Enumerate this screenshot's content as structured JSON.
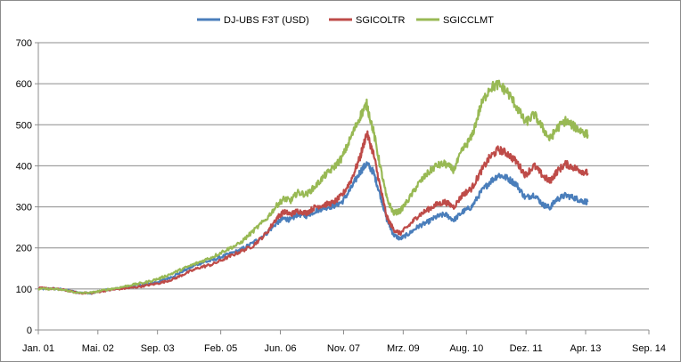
{
  "chart_data": {
    "type": "line",
    "title": "",
    "xlabel": "",
    "ylabel": "",
    "ylim": [
      0,
      700
    ],
    "yticks": [
      0,
      100,
      200,
      300,
      400,
      500,
      600,
      700
    ],
    "x_range": [
      2001.0,
      2014.667
    ],
    "xticks": [
      {
        "label": "Jan. 01",
        "value": 2001.0
      },
      {
        "label": "Mai. 02",
        "value": 2002.333
      },
      {
        "label": "Sep. 03",
        "value": 2003.667
      },
      {
        "label": "Feb. 05",
        "value": 2005.083
      },
      {
        "label": "Jun. 06",
        "value": 2006.417
      },
      {
        "label": "Nov. 07",
        "value": 2007.833
      },
      {
        "label": "Mrz. 09",
        "value": 2009.167
      },
      {
        "label": "Aug. 10",
        "value": 2010.583
      },
      {
        "label": "Dez. 11",
        "value": 2011.917
      },
      {
        "label": "Apr. 13",
        "value": 2013.25
      },
      {
        "label": "Sep. 14",
        "value": 2014.667
      }
    ],
    "grid": "horizontal",
    "legend_position": "top",
    "series": [
      {
        "name": "DJ-UBS F3T (USD)",
        "color": "#4a7ebb",
        "points": [
          [
            2001.0,
            100
          ],
          [
            2001.3,
            101
          ],
          [
            2001.6,
            98
          ],
          [
            2001.9,
            91
          ],
          [
            2002.2,
            90
          ],
          [
            2002.5,
            97
          ],
          [
            2002.8,
            101
          ],
          [
            2003.1,
            107
          ],
          [
            2003.4,
            111
          ],
          [
            2003.7,
            118
          ],
          [
            2004.0,
            130
          ],
          [
            2004.3,
            147
          ],
          [
            2004.6,
            162
          ],
          [
            2004.9,
            170
          ],
          [
            2005.2,
            182
          ],
          [
            2005.5,
            194
          ],
          [
            2005.8,
            212
          ],
          [
            2006.1,
            235
          ],
          [
            2006.35,
            262
          ],
          [
            2006.5,
            272
          ],
          [
            2006.65,
            268
          ],
          [
            2006.8,
            282
          ],
          [
            2007.0,
            278
          ],
          [
            2007.2,
            290
          ],
          [
            2007.4,
            298
          ],
          [
            2007.6,
            302
          ],
          [
            2007.8,
            312
          ],
          [
            2008.0,
            345
          ],
          [
            2008.2,
            385
          ],
          [
            2008.35,
            405
          ],
          [
            2008.5,
            385
          ],
          [
            2008.65,
            330
          ],
          [
            2008.8,
            270
          ],
          [
            2008.95,
            232
          ],
          [
            2009.1,
            222
          ],
          [
            2009.3,
            235
          ],
          [
            2009.5,
            252
          ],
          [
            2009.7,
            262
          ],
          [
            2009.9,
            275
          ],
          [
            2010.1,
            282
          ],
          [
            2010.3,
            268
          ],
          [
            2010.5,
            288
          ],
          [
            2010.7,
            300
          ],
          [
            2010.9,
            335
          ],
          [
            2011.1,
            360
          ],
          [
            2011.3,
            378
          ],
          [
            2011.5,
            370
          ],
          [
            2011.7,
            355
          ],
          [
            2011.9,
            322
          ],
          [
            2012.1,
            330
          ],
          [
            2012.3,
            305
          ],
          [
            2012.45,
            298
          ],
          [
            2012.6,
            318
          ],
          [
            2012.8,
            328
          ],
          [
            2013.0,
            322
          ],
          [
            2013.15,
            315
          ],
          [
            2013.3,
            312
          ]
        ]
      },
      {
        "name": "SGICOLTR",
        "color": "#be4b48",
        "points": [
          [
            2001.0,
            102
          ],
          [
            2001.3,
            101
          ],
          [
            2001.6,
            97
          ],
          [
            2001.9,
            90
          ],
          [
            2002.2,
            90
          ],
          [
            2002.5,
            96
          ],
          [
            2002.8,
            100
          ],
          [
            2003.1,
            103
          ],
          [
            2003.4,
            108
          ],
          [
            2003.7,
            114
          ],
          [
            2004.0,
            123
          ],
          [
            2004.3,
            138
          ],
          [
            2004.6,
            152
          ],
          [
            2004.9,
            160
          ],
          [
            2005.2,
            175
          ],
          [
            2005.5,
            190
          ],
          [
            2005.8,
            205
          ],
          [
            2006.1,
            235
          ],
          [
            2006.35,
            275
          ],
          [
            2006.5,
            288
          ],
          [
            2006.65,
            282
          ],
          [
            2006.8,
            290
          ],
          [
            2007.0,
            285
          ],
          [
            2007.2,
            300
          ],
          [
            2007.4,
            305
          ],
          [
            2007.6,
            310
          ],
          [
            2007.8,
            328
          ],
          [
            2008.0,
            365
          ],
          [
            2008.2,
            420
          ],
          [
            2008.35,
            480
          ],
          [
            2008.5,
            430
          ],
          [
            2008.65,
            350
          ],
          [
            2008.8,
            275
          ],
          [
            2008.95,
            245
          ],
          [
            2009.1,
            235
          ],
          [
            2009.3,
            255
          ],
          [
            2009.5,
            278
          ],
          [
            2009.7,
            292
          ],
          [
            2009.9,
            305
          ],
          [
            2010.1,
            312
          ],
          [
            2010.3,
            300
          ],
          [
            2010.5,
            330
          ],
          [
            2010.7,
            345
          ],
          [
            2010.9,
            385
          ],
          [
            2011.1,
            420
          ],
          [
            2011.3,
            440
          ],
          [
            2011.5,
            430
          ],
          [
            2011.7,
            410
          ],
          [
            2011.9,
            378
          ],
          [
            2012.1,
            400
          ],
          [
            2012.3,
            375
          ],
          [
            2012.45,
            362
          ],
          [
            2012.6,
            385
          ],
          [
            2012.8,
            405
          ],
          [
            2013.0,
            395
          ],
          [
            2013.15,
            388
          ],
          [
            2013.3,
            382
          ]
        ]
      },
      {
        "name": "SGICCLMT",
        "color": "#98b954",
        "points": [
          [
            2001.0,
            100
          ],
          [
            2001.3,
            100
          ],
          [
            2001.6,
            97
          ],
          [
            2001.9,
            90
          ],
          [
            2002.2,
            91
          ],
          [
            2002.5,
            98
          ],
          [
            2002.8,
            103
          ],
          [
            2003.1,
            110
          ],
          [
            2003.4,
            116
          ],
          [
            2003.7,
            125
          ],
          [
            2004.0,
            138
          ],
          [
            2004.3,
            152
          ],
          [
            2004.6,
            165
          ],
          [
            2004.9,
            178
          ],
          [
            2005.2,
            195
          ],
          [
            2005.5,
            210
          ],
          [
            2005.8,
            240
          ],
          [
            2006.1,
            270
          ],
          [
            2006.35,
            305
          ],
          [
            2006.5,
            320
          ],
          [
            2006.65,
            315
          ],
          [
            2006.8,
            335
          ],
          [
            2007.0,
            330
          ],
          [
            2007.2,
            350
          ],
          [
            2007.4,
            375
          ],
          [
            2007.6,
            395
          ],
          [
            2007.8,
            420
          ],
          [
            2008.0,
            470
          ],
          [
            2008.2,
            520
          ],
          [
            2008.35,
            550
          ],
          [
            2008.5,
            485
          ],
          [
            2008.65,
            400
          ],
          [
            2008.8,
            320
          ],
          [
            2008.95,
            285
          ],
          [
            2009.1,
            290
          ],
          [
            2009.3,
            320
          ],
          [
            2009.5,
            355
          ],
          [
            2009.7,
            380
          ],
          [
            2009.9,
            400
          ],
          [
            2010.1,
            405
          ],
          [
            2010.3,
            390
          ],
          [
            2010.5,
            440
          ],
          [
            2010.7,
            470
          ],
          [
            2010.9,
            545
          ],
          [
            2011.1,
            590
          ],
          [
            2011.3,
            598
          ],
          [
            2011.5,
            580
          ],
          [
            2011.7,
            545
          ],
          [
            2011.9,
            505
          ],
          [
            2012.1,
            525
          ],
          [
            2012.3,
            490
          ],
          [
            2012.45,
            465
          ],
          [
            2012.6,
            490
          ],
          [
            2012.8,
            510
          ],
          [
            2013.0,
            495
          ],
          [
            2013.15,
            485
          ],
          [
            2013.3,
            476
          ]
        ]
      }
    ]
  }
}
